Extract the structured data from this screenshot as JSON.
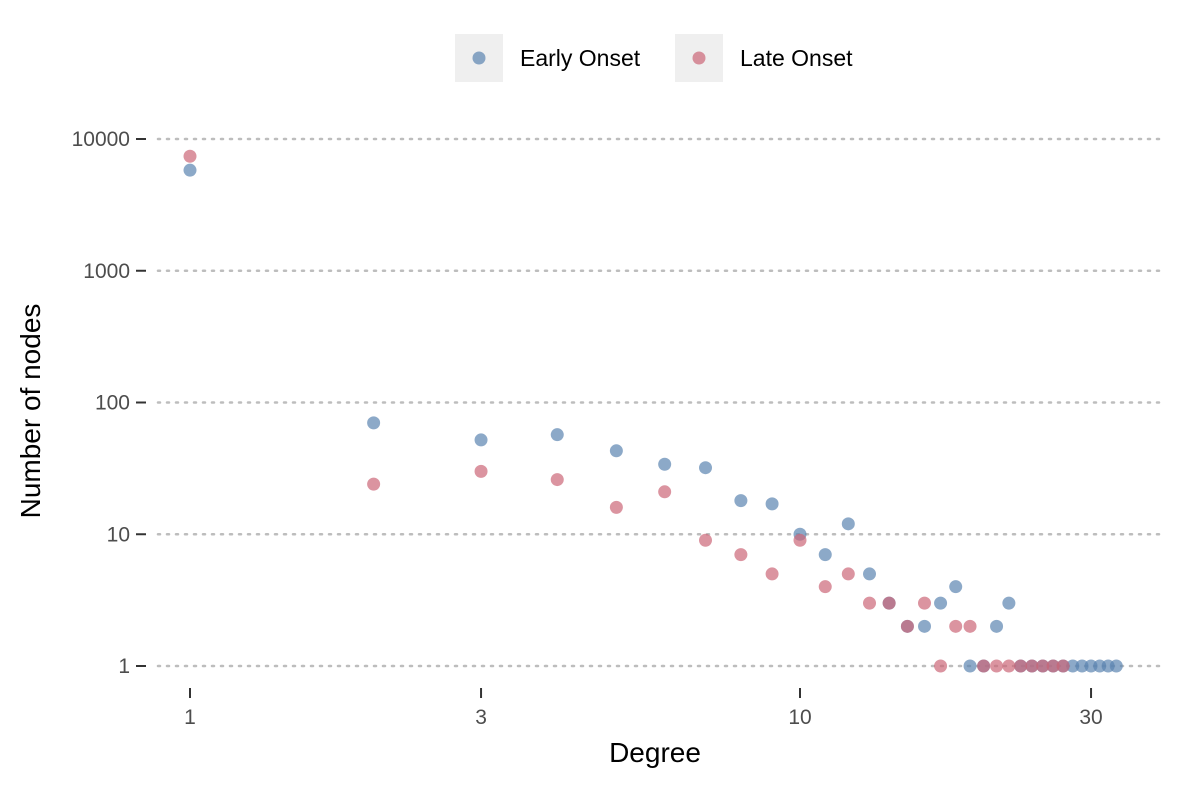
{
  "chart_data": {
    "type": "scatter",
    "title": "",
    "xlabel": "Degree",
    "ylabel": "Number of nodes",
    "x_scale": "log",
    "y_scale": "log",
    "xlim": [
      0.9,
      35
    ],
    "ylim": [
      0.75,
      13000
    ],
    "x_ticks": [
      {
        "value": 1,
        "label": "1"
      },
      {
        "value": 3,
        "label": "3"
      },
      {
        "value": 10,
        "label": "10"
      },
      {
        "value": 30,
        "label": "30"
      }
    ],
    "y_ticks": [
      {
        "value": 1,
        "label": "1"
      },
      {
        "value": 10,
        "label": "10"
      },
      {
        "value": 100,
        "label": "100"
      },
      {
        "value": 1000,
        "label": "1000"
      },
      {
        "value": 10000,
        "label": "10000"
      }
    ],
    "grid": "horizontal dotted",
    "legend_position": "top",
    "series": [
      {
        "name": "Early Onset",
        "color": "#5b84b1",
        "points": [
          [
            1,
            5800
          ],
          [
            2,
            70
          ],
          [
            3,
            52
          ],
          [
            4,
            57
          ],
          [
            5,
            43
          ],
          [
            6,
            34
          ],
          [
            7,
            32
          ],
          [
            8,
            18
          ],
          [
            9,
            17
          ],
          [
            10,
            10
          ],
          [
            11,
            7
          ],
          [
            12,
            12
          ],
          [
            13,
            5
          ],
          [
            14,
            3
          ],
          [
            15,
            2
          ],
          [
            16,
            2
          ],
          [
            17,
            3
          ],
          [
            18,
            4
          ],
          [
            19,
            1
          ],
          [
            20,
            1
          ],
          [
            21,
            2
          ],
          [
            22,
            3
          ],
          [
            23,
            1
          ],
          [
            24,
            1
          ],
          [
            25,
            1
          ],
          [
            26,
            1
          ],
          [
            27,
            1
          ],
          [
            28,
            1
          ],
          [
            29,
            1
          ],
          [
            30,
            1
          ],
          [
            31,
            1
          ],
          [
            32,
            1
          ],
          [
            33,
            1
          ]
        ]
      },
      {
        "name": "Late Onset",
        "color": "#cc6677",
        "points": [
          [
            1,
            7400
          ],
          [
            2,
            24
          ],
          [
            3,
            30
          ],
          [
            4,
            26
          ],
          [
            5,
            16
          ],
          [
            6,
            21
          ],
          [
            7,
            9
          ],
          [
            8,
            7
          ],
          [
            9,
            5
          ],
          [
            10,
            9
          ],
          [
            11,
            4
          ],
          [
            12,
            5
          ],
          [
            13,
            3
          ],
          [
            14,
            3
          ],
          [
            15,
            2
          ],
          [
            16,
            3
          ],
          [
            17,
            1
          ],
          [
            18,
            2
          ],
          [
            19,
            2
          ],
          [
            20,
            1
          ],
          [
            21,
            1
          ],
          [
            22,
            1
          ],
          [
            23,
            1
          ],
          [
            24,
            1
          ],
          [
            25,
            1
          ],
          [
            26,
            1
          ],
          [
            27,
            1
          ]
        ]
      }
    ]
  }
}
